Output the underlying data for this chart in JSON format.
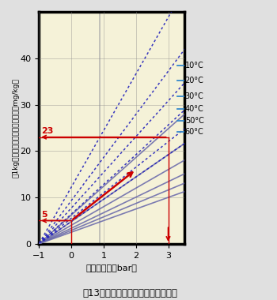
{
  "title": "図13：大気からの酸素の最大溶解度",
  "xlabel": "圧力（単位：bar）",
  "ylabel": "水1kg中の最大酸素溶解量（単位：mg/kg）",
  "xlim": [
    -1,
    3.5
  ],
  "ylim": [
    0,
    50
  ],
  "xticks": [
    -1,
    0,
    1,
    2,
    3
  ],
  "yticks": [
    0,
    10,
    20,
    30,
    40
  ],
  "bg_color": "#f5f2d8",
  "grid_color": "#888888",
  "solid_slopes": [
    6.2,
    4.8,
    4.0,
    3.35,
    2.9,
    2.5
  ],
  "dotted_slopes": [
    12.2,
    9.3,
    7.7,
    6.4,
    5.5,
    4.8
  ],
  "solid_color": "#6666aa",
  "dotted_color": "#2222bb",
  "legend_line_color": "#3388cc",
  "legend_labels": [
    "10°C",
    "20°C",
    "30°C",
    "40°C",
    "50°C",
    "60°C"
  ],
  "legend_y_positions": [
    38.5,
    35.2,
    31.8,
    29.0,
    26.5,
    24.2
  ],
  "red_color": "#cc0000",
  "gray_vline_x": 0.88,
  "gray_vline_color": "#aaaaaa",
  "fig_bg": "#e0e0e0",
  "spine_lw": 2.5
}
